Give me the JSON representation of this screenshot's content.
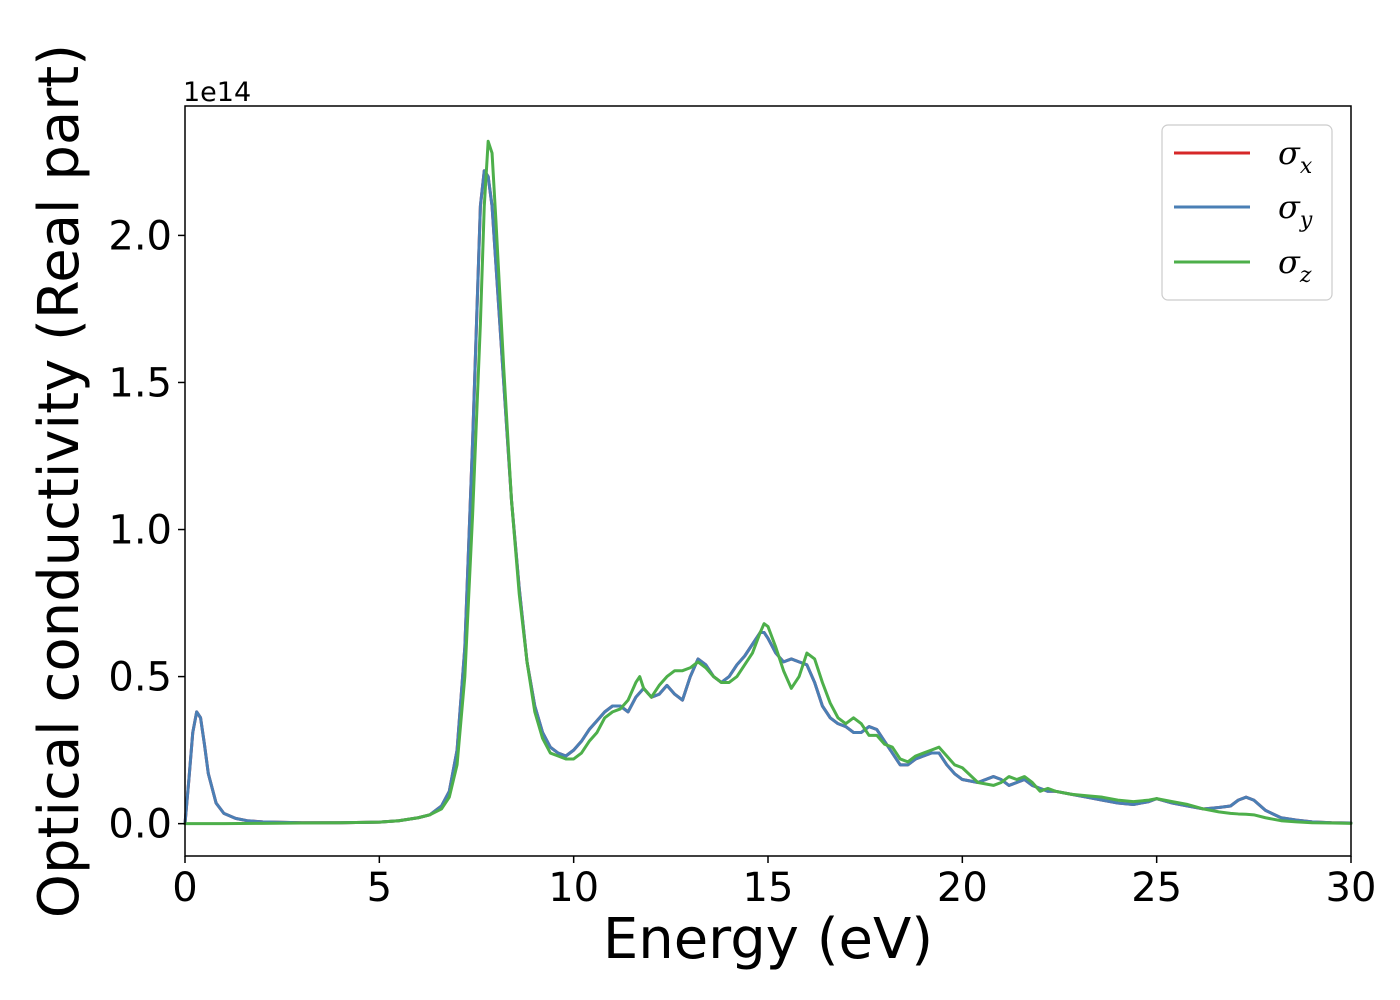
{
  "chart_data": {
    "type": "line",
    "title": "",
    "xlabel": "Energy (eV)",
    "ylabel": "Optical conductivity (Real part)",
    "offset_text": "1e14",
    "xlim": [
      0,
      30
    ],
    "ylim": [
      -0.11,
      2.44
    ],
    "xticks": [
      0,
      5,
      10,
      15,
      20,
      25,
      30
    ],
    "xtick_labels": [
      "0",
      "5",
      "10",
      "15",
      "20",
      "25",
      "30"
    ],
    "yticks": [
      0.0,
      0.5,
      1.0,
      1.5,
      2.0
    ],
    "ytick_labels": [
      "0.0",
      "0.5",
      "1.0",
      "1.5",
      "2.0"
    ],
    "grid": false,
    "legend_position": "top-right",
    "series": [
      {
        "name": "σx",
        "legend_symbol": "σ",
        "legend_sub": "x",
        "color": "#d62728",
        "x": [
          0,
          0.1,
          0.2,
          0.3,
          0.4,
          0.5,
          0.6,
          0.8,
          1.0,
          1.3,
          1.6,
          2.0,
          3.0,
          4.0,
          5.0,
          5.5,
          6.0,
          6.3,
          6.6,
          6.8,
          7.0,
          7.2,
          7.4,
          7.6,
          7.7,
          7.8,
          7.9,
          8.0,
          8.2,
          8.4,
          8.6,
          8.8,
          9.0,
          9.2,
          9.4,
          9.6,
          9.8,
          10.0,
          10.2,
          10.4,
          10.6,
          10.8,
          11.0,
          11.2,
          11.4,
          11.6,
          11.8,
          12.0,
          12.2,
          12.4,
          12.6,
          12.8,
          13.0,
          13.2,
          13.4,
          13.6,
          13.8,
          14.0,
          14.2,
          14.4,
          14.6,
          14.8,
          14.9,
          15.0,
          15.2,
          15.4,
          15.6,
          15.8,
          16.0,
          16.2,
          16.4,
          16.6,
          16.8,
          17.0,
          17.2,
          17.4,
          17.6,
          17.8,
          18.0,
          18.2,
          18.4,
          18.6,
          18.8,
          19.0,
          19.2,
          19.4,
          19.6,
          19.8,
          20.0,
          20.4,
          20.8,
          21.0,
          21.2,
          21.4,
          21.6,
          21.8,
          22.0,
          22.2,
          22.4,
          22.8,
          23.2,
          23.6,
          24.0,
          24.4,
          24.8,
          25.0,
          25.4,
          25.8,
          26.2,
          26.6,
          26.9,
          27.1,
          27.3,
          27.5,
          27.8,
          28.2,
          28.6,
          29.0,
          29.5,
          30.0
        ],
        "y": [
          0.0,
          0.15,
          0.31,
          0.38,
          0.36,
          0.27,
          0.17,
          0.07,
          0.035,
          0.018,
          0.01,
          0.006,
          0.003,
          0.003,
          0.005,
          0.01,
          0.02,
          0.03,
          0.06,
          0.11,
          0.25,
          0.6,
          1.3,
          2.1,
          2.22,
          2.2,
          2.1,
          1.9,
          1.5,
          1.1,
          0.8,
          0.55,
          0.4,
          0.31,
          0.26,
          0.24,
          0.23,
          0.25,
          0.28,
          0.32,
          0.35,
          0.38,
          0.4,
          0.4,
          0.38,
          0.43,
          0.46,
          0.43,
          0.44,
          0.47,
          0.44,
          0.42,
          0.5,
          0.56,
          0.54,
          0.5,
          0.48,
          0.5,
          0.54,
          0.57,
          0.61,
          0.65,
          0.65,
          0.63,
          0.58,
          0.55,
          0.56,
          0.55,
          0.54,
          0.48,
          0.4,
          0.36,
          0.34,
          0.33,
          0.31,
          0.31,
          0.33,
          0.32,
          0.28,
          0.24,
          0.2,
          0.2,
          0.22,
          0.23,
          0.24,
          0.24,
          0.2,
          0.17,
          0.15,
          0.14,
          0.16,
          0.15,
          0.13,
          0.14,
          0.15,
          0.13,
          0.12,
          0.11,
          0.11,
          0.1,
          0.09,
          0.08,
          0.07,
          0.065,
          0.075,
          0.085,
          0.07,
          0.06,
          0.05,
          0.055,
          0.06,
          0.08,
          0.09,
          0.08,
          0.045,
          0.02,
          0.012,
          0.006,
          0.003,
          0.002
        ]
      },
      {
        "name": "σy",
        "legend_symbol": "σ",
        "legend_sub": "y",
        "color": "#4a7fb5",
        "x": [
          0,
          0.1,
          0.2,
          0.3,
          0.4,
          0.5,
          0.6,
          0.8,
          1.0,
          1.3,
          1.6,
          2.0,
          3.0,
          4.0,
          5.0,
          5.5,
          6.0,
          6.3,
          6.6,
          6.8,
          7.0,
          7.2,
          7.4,
          7.6,
          7.7,
          7.8,
          7.9,
          8.0,
          8.2,
          8.4,
          8.6,
          8.8,
          9.0,
          9.2,
          9.4,
          9.6,
          9.8,
          10.0,
          10.2,
          10.4,
          10.6,
          10.8,
          11.0,
          11.2,
          11.4,
          11.6,
          11.8,
          12.0,
          12.2,
          12.4,
          12.6,
          12.8,
          13.0,
          13.2,
          13.4,
          13.6,
          13.8,
          14.0,
          14.2,
          14.4,
          14.6,
          14.8,
          14.9,
          15.0,
          15.2,
          15.4,
          15.6,
          15.8,
          16.0,
          16.2,
          16.4,
          16.6,
          16.8,
          17.0,
          17.2,
          17.4,
          17.6,
          17.8,
          18.0,
          18.2,
          18.4,
          18.6,
          18.8,
          19.0,
          19.2,
          19.4,
          19.6,
          19.8,
          20.0,
          20.4,
          20.8,
          21.0,
          21.2,
          21.4,
          21.6,
          21.8,
          22.0,
          22.2,
          22.4,
          22.8,
          23.2,
          23.6,
          24.0,
          24.4,
          24.8,
          25.0,
          25.4,
          25.8,
          26.2,
          26.6,
          26.9,
          27.1,
          27.3,
          27.5,
          27.8,
          28.2,
          28.6,
          29.0,
          29.5,
          30.0
        ],
        "y": [
          0.0,
          0.15,
          0.31,
          0.38,
          0.36,
          0.27,
          0.17,
          0.07,
          0.035,
          0.018,
          0.01,
          0.006,
          0.003,
          0.003,
          0.005,
          0.01,
          0.02,
          0.03,
          0.06,
          0.11,
          0.25,
          0.6,
          1.3,
          2.1,
          2.22,
          2.2,
          2.1,
          1.9,
          1.5,
          1.1,
          0.8,
          0.55,
          0.4,
          0.31,
          0.26,
          0.24,
          0.23,
          0.25,
          0.28,
          0.32,
          0.35,
          0.38,
          0.4,
          0.4,
          0.38,
          0.43,
          0.46,
          0.43,
          0.44,
          0.47,
          0.44,
          0.42,
          0.5,
          0.56,
          0.54,
          0.5,
          0.48,
          0.5,
          0.54,
          0.57,
          0.61,
          0.65,
          0.65,
          0.63,
          0.58,
          0.55,
          0.56,
          0.55,
          0.54,
          0.48,
          0.4,
          0.36,
          0.34,
          0.33,
          0.31,
          0.31,
          0.33,
          0.32,
          0.28,
          0.24,
          0.2,
          0.2,
          0.22,
          0.23,
          0.24,
          0.24,
          0.2,
          0.17,
          0.15,
          0.14,
          0.16,
          0.15,
          0.13,
          0.14,
          0.15,
          0.13,
          0.12,
          0.11,
          0.11,
          0.1,
          0.09,
          0.08,
          0.07,
          0.065,
          0.075,
          0.085,
          0.07,
          0.06,
          0.05,
          0.055,
          0.06,
          0.08,
          0.09,
          0.08,
          0.045,
          0.02,
          0.012,
          0.006,
          0.003,
          0.002
        ]
      },
      {
        "name": "σz",
        "legend_symbol": "σ",
        "legend_sub": "z",
        "color": "#4daf4a",
        "x": [
          0,
          1.0,
          2.0,
          3.0,
          4.0,
          5.0,
          5.5,
          6.0,
          6.3,
          6.6,
          6.8,
          7.0,
          7.2,
          7.4,
          7.6,
          7.7,
          7.8,
          7.9,
          8.0,
          8.2,
          8.4,
          8.6,
          8.8,
          9.0,
          9.2,
          9.4,
          9.6,
          9.8,
          10.0,
          10.2,
          10.4,
          10.6,
          10.8,
          11.0,
          11.2,
          11.4,
          11.6,
          11.7,
          11.8,
          12.0,
          12.2,
          12.4,
          12.6,
          12.8,
          13.0,
          13.2,
          13.4,
          13.6,
          13.8,
          14.0,
          14.2,
          14.4,
          14.6,
          14.8,
          14.9,
          15.0,
          15.2,
          15.4,
          15.6,
          15.8,
          16.0,
          16.2,
          16.4,
          16.6,
          16.8,
          17.0,
          17.2,
          17.4,
          17.6,
          17.8,
          18.0,
          18.2,
          18.4,
          18.6,
          18.8,
          19.0,
          19.2,
          19.4,
          19.6,
          19.8,
          20.0,
          20.4,
          20.8,
          21.0,
          21.2,
          21.4,
          21.6,
          21.8,
          22.0,
          22.2,
          22.4,
          22.8,
          23.2,
          23.6,
          24.0,
          24.4,
          24.8,
          25.0,
          25.4,
          25.8,
          26.2,
          26.6,
          26.9,
          27.1,
          27.3,
          27.5,
          27.8,
          28.2,
          28.6,
          29.0,
          29.5,
          30.0
        ],
        "y": [
          0.0,
          0.0,
          0.001,
          0.002,
          0.003,
          0.005,
          0.01,
          0.02,
          0.03,
          0.05,
          0.09,
          0.2,
          0.5,
          1.05,
          1.7,
          2.1,
          2.32,
          2.28,
          2.05,
          1.55,
          1.1,
          0.78,
          0.55,
          0.38,
          0.29,
          0.24,
          0.23,
          0.22,
          0.22,
          0.24,
          0.28,
          0.31,
          0.36,
          0.38,
          0.39,
          0.42,
          0.48,
          0.5,
          0.46,
          0.43,
          0.47,
          0.5,
          0.52,
          0.52,
          0.53,
          0.55,
          0.53,
          0.5,
          0.48,
          0.48,
          0.5,
          0.54,
          0.58,
          0.65,
          0.68,
          0.67,
          0.6,
          0.52,
          0.46,
          0.5,
          0.58,
          0.56,
          0.48,
          0.41,
          0.36,
          0.34,
          0.36,
          0.34,
          0.3,
          0.3,
          0.27,
          0.26,
          0.22,
          0.21,
          0.23,
          0.24,
          0.25,
          0.26,
          0.23,
          0.2,
          0.19,
          0.14,
          0.13,
          0.14,
          0.16,
          0.15,
          0.16,
          0.14,
          0.11,
          0.12,
          0.11,
          0.1,
          0.095,
          0.09,
          0.08,
          0.075,
          0.08,
          0.085,
          0.075,
          0.065,
          0.05,
          0.04,
          0.035,
          0.033,
          0.032,
          0.03,
          0.02,
          0.01,
          0.006,
          0.003,
          0.002,
          0.001
        ]
      }
    ]
  }
}
